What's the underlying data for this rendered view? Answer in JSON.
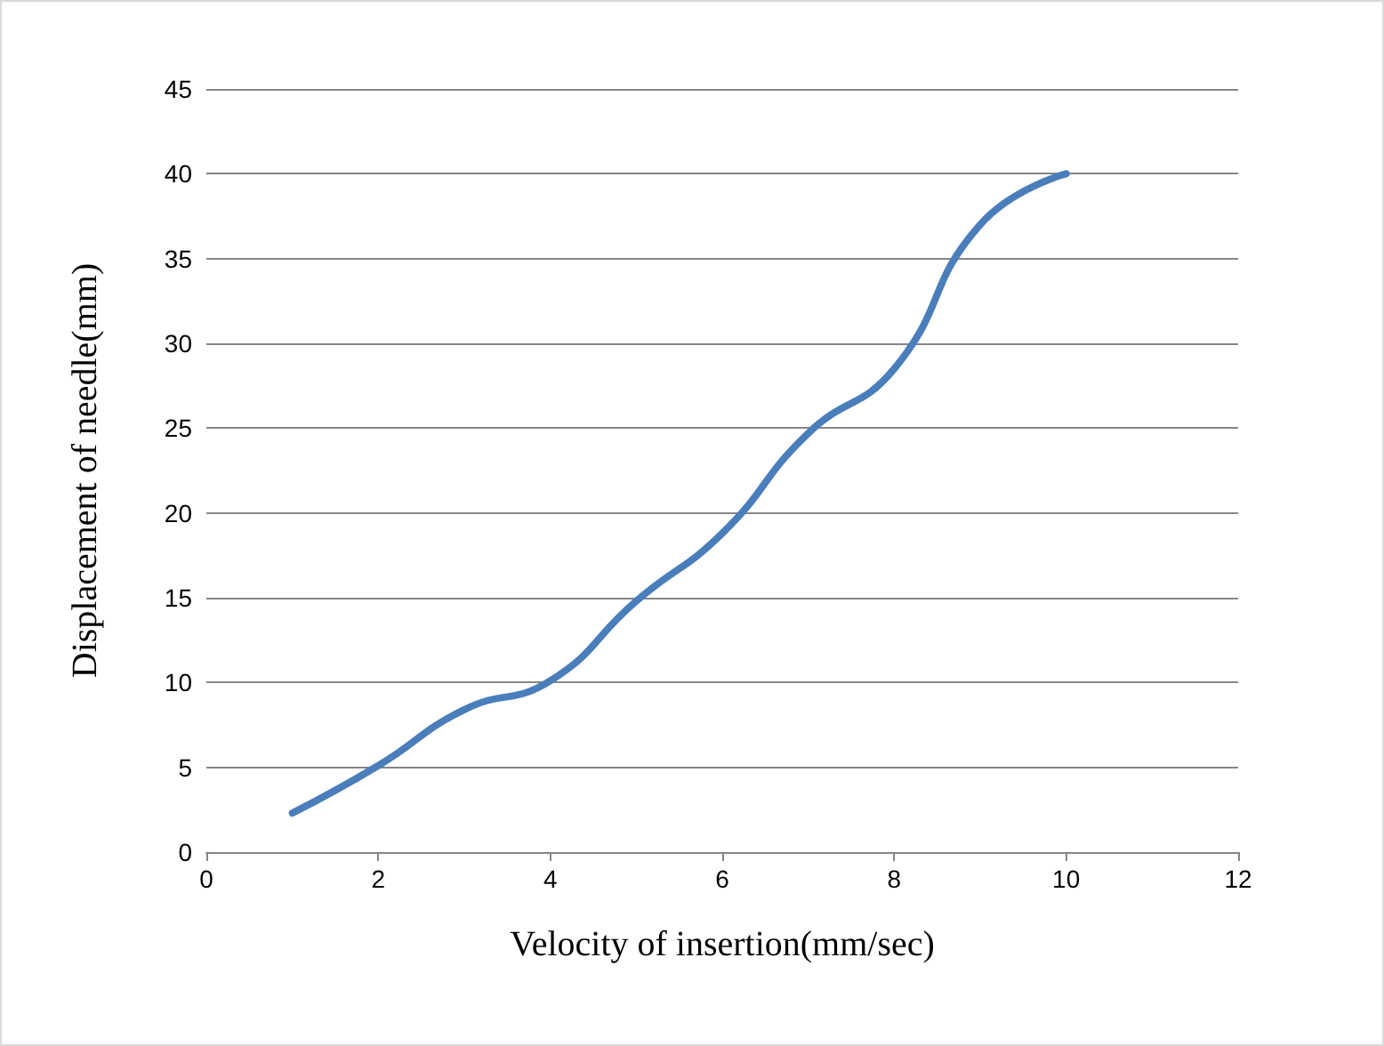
{
  "chart_data": {
    "type": "line",
    "xlabel": "Velocity of insertion(mm/sec)",
    "ylabel": "Displacement of needle(mm)",
    "x": [
      1,
      2,
      3,
      4,
      5,
      6,
      7,
      8,
      9,
      10
    ],
    "series": [
      {
        "color": "#4a7ebb",
        "values": [
          2.3,
          5.1,
          8.4,
          10.1,
          14.8,
          18.8,
          24.7,
          28.5,
          37,
          40
        ]
      }
    ],
    "xlim": [
      0,
      12
    ],
    "xticks": [
      0,
      2,
      4,
      6,
      8,
      10,
      12
    ],
    "ylim": [
      0,
      45
    ],
    "yticks": [
      0,
      5,
      10,
      15,
      20,
      25,
      30,
      35,
      40,
      45
    ],
    "grid": "y",
    "marker": "none",
    "line_style": "solid"
  }
}
